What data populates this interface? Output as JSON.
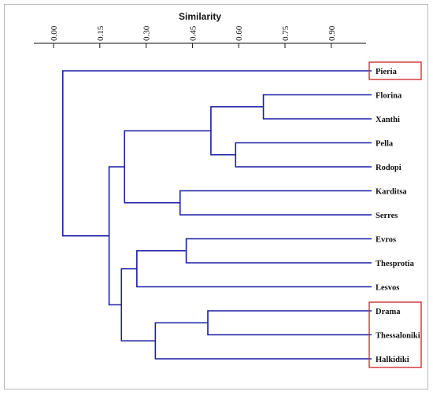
{
  "dendrogram": {
    "axis_title": "Similarity",
    "ticks": [
      {
        "value": 0.0,
        "label": "0.00"
      },
      {
        "value": 0.15,
        "label": "0.15"
      },
      {
        "value": 0.3,
        "label": "0.30"
      },
      {
        "value": 0.45,
        "label": "0.45"
      },
      {
        "value": 0.6,
        "label": "0.60"
      },
      {
        "value": 0.75,
        "label": "0.75"
      },
      {
        "value": 0.9,
        "label": "0.90"
      }
    ],
    "leaves": [
      "Pieria",
      "Florina",
      "Xanthi",
      "Pella",
      "Rodopi",
      "Karditsa",
      "Serres",
      "Evros",
      "Thesprotia",
      "Lesvos",
      "Drama",
      "Thessaloniki",
      "Halkidiki"
    ],
    "merges": [
      {
        "id": "m1",
        "left": "Florina",
        "right": "Xanthi",
        "similarity": 0.68
      },
      {
        "id": "m2",
        "left": "Pella",
        "right": "Rodopi",
        "similarity": 0.59
      },
      {
        "id": "m3",
        "left": "m1",
        "right": "m2",
        "similarity": 0.51
      },
      {
        "id": "m4",
        "left": "Karditsa",
        "right": "Serres",
        "similarity": 0.41
      },
      {
        "id": "m5",
        "left": "m3",
        "right": "m4",
        "similarity": 0.23
      },
      {
        "id": "m6",
        "left": "Evros",
        "right": "Thesprotia",
        "similarity": 0.43
      },
      {
        "id": "m7",
        "left": "m6",
        "right": "Lesvos",
        "similarity": 0.27
      },
      {
        "id": "m8",
        "left": "Drama",
        "right": "Thessaloniki",
        "similarity": 0.5
      },
      {
        "id": "m9",
        "left": "m8",
        "right": "Halkidiki",
        "similarity": 0.33
      },
      {
        "id": "m10",
        "left": "m7",
        "right": "m9",
        "similarity": 0.22
      },
      {
        "id": "m11",
        "left": "m5",
        "right": "m10",
        "similarity": 0.18
      },
      {
        "id": "m12",
        "left": "Pieria",
        "right": "m11",
        "similarity": 0.03
      }
    ],
    "highlight_groups": [
      {
        "name": "highlight-box-pieria",
        "members": [
          "Pieria"
        ]
      },
      {
        "name": "highlight-box-drama-thessaloniki-halkidiki",
        "members": [
          "Drama",
          "Thessaloniki",
          "Halkidiki"
        ]
      }
    ],
    "colors": {
      "branch": "#1c1ca8",
      "highlight": "#d32f2f",
      "axis": "#111111"
    }
  }
}
